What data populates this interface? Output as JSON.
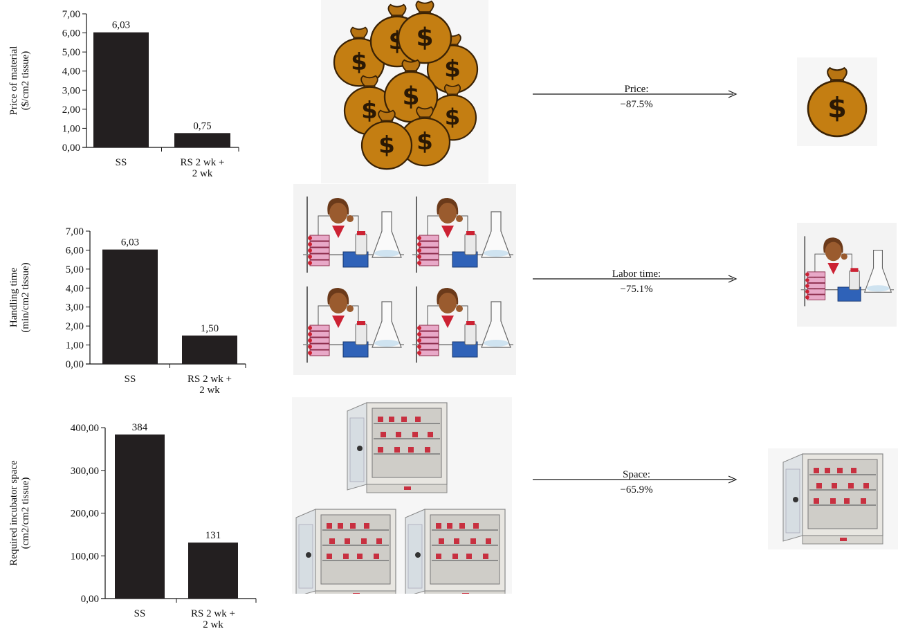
{
  "chart_data": [
    {
      "type": "bar",
      "categories": [
        "SS",
        "RS 2 wk +\n2 wk"
      ],
      "values": [
        6.03,
        0.75
      ],
      "value_labels": [
        "6,03",
        "0,75"
      ],
      "ylabel": [
        "Price of material",
        "($/cm2 tissue)"
      ],
      "yticks": [
        "0,00",
        "1,00",
        "2,00",
        "3,00",
        "4,00",
        "5,00",
        "6,00",
        "7,00"
      ],
      "ylim": [
        0,
        7
      ],
      "bar_color": "#231f20"
    },
    {
      "type": "bar",
      "categories": [
        "SS",
        "RS 2 wk +\n2 wk"
      ],
      "values": [
        6.03,
        1.5
      ],
      "value_labels": [
        "6,03",
        "1,50"
      ],
      "ylabel": [
        "Handling time",
        "(min/cm2 tissue)"
      ],
      "yticks": [
        "0,00",
        "1,00",
        "2,00",
        "3,00",
        "4,00",
        "5,00",
        "6,00",
        "7,00"
      ],
      "ylim": [
        0,
        7
      ],
      "bar_color": "#231f20"
    },
    {
      "type": "bar",
      "categories": [
        "SS",
        "RS 2 wk +\n2 wk"
      ],
      "values": [
        384,
        131
      ],
      "value_labels": [
        "384",
        "131"
      ],
      "ylabel": [
        "Required incubator space",
        "(cm2/cm2 tissue)"
      ],
      "yticks": [
        "0,00",
        "100,00",
        "200,00",
        "300,00",
        "400,00"
      ],
      "ylim": [
        0,
        400
      ],
      "bar_color": "#231f20"
    }
  ],
  "reductions": [
    {
      "label": "Price:",
      "value": "−87.5%"
    },
    {
      "label": "Labor time:",
      "value": "−75.1%"
    },
    {
      "label": "Space:",
      "value": "−65.9%"
    }
  ],
  "colors": {
    "money_bag": "#c47e12",
    "money_outline": "#3a2205",
    "picture_bg": "#f3f3f3",
    "incubator": "#e8e6e1"
  }
}
